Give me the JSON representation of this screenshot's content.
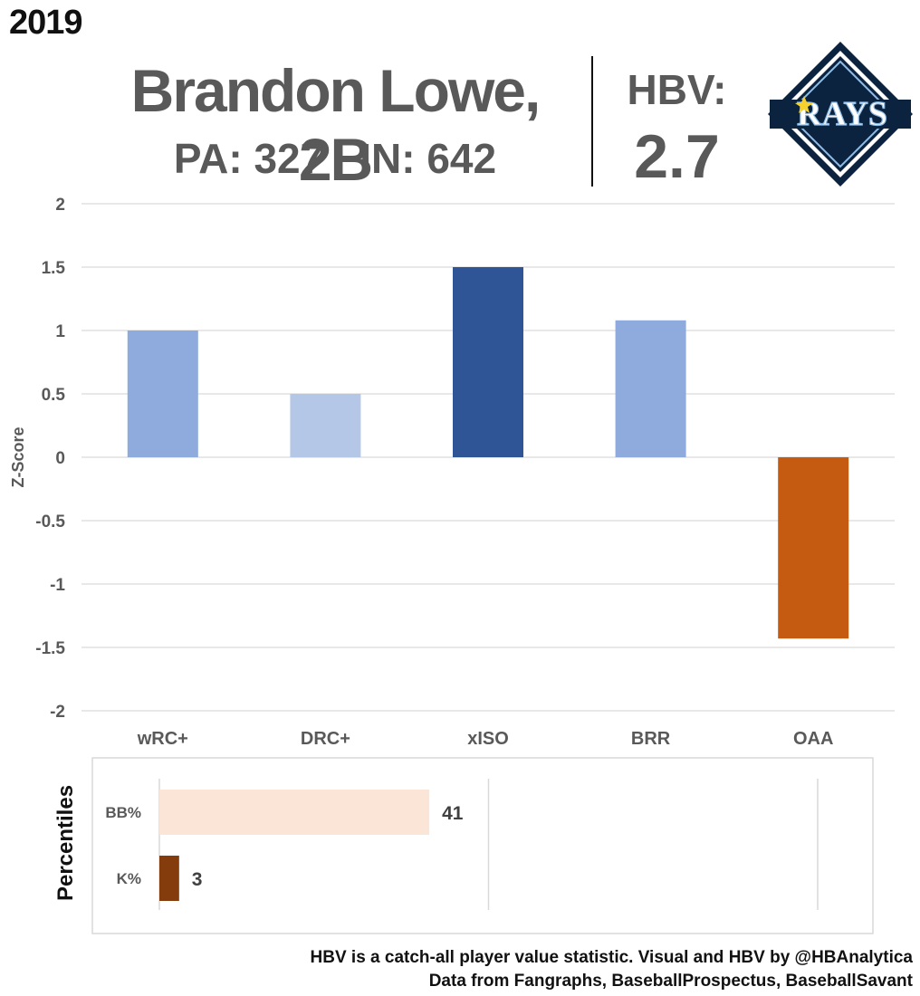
{
  "header": {
    "year": "2019",
    "player": "Brandon Lowe, 2B",
    "pa": "PA: 327",
    "inn": "IN: 642",
    "hbv_label": "HBV:",
    "hbv_value": "2.7"
  },
  "logo": {
    "text": "RAYS",
    "navy": "#0c2340",
    "gold": "#f5d130",
    "light_blue": "#8fbce6"
  },
  "chart_data": [
    {
      "type": "bar",
      "title": "",
      "xlabel": "",
      "ylabel": "Z-Score",
      "categories": [
        "wRC+",
        "DRC+",
        "xISO",
        "BRR",
        "OAA"
      ],
      "values": [
        1.0,
        0.5,
        1.5,
        1.08,
        -1.43
      ],
      "colors": [
        "#8faadc",
        "#b4c7e7",
        "#2f5597",
        "#8faadc",
        "#c55a11"
      ],
      "ylim": [
        -2,
        2
      ],
      "yticks": [
        2,
        1.5,
        1,
        0.5,
        0,
        -0.5,
        -1,
        -1.5,
        -2
      ],
      "grid": true,
      "legend": "none"
    },
    {
      "type": "bar",
      "orientation": "horizontal",
      "ylabel": "Percentiles",
      "categories": [
        "BB%",
        "K%"
      ],
      "values": [
        41,
        3
      ],
      "colors": [
        "#fbe5d6",
        "#843c0c"
      ],
      "xlim": [
        0,
        100
      ],
      "xgrid": [
        0,
        50,
        100
      ],
      "grid": true,
      "legend": "none"
    }
  ],
  "footer": {
    "line1": "HBV is a catch-all player value statistic. Visual and HBV by @HBAnalytica",
    "line2": "Data from Fangraphs, BaseballProspectus, BaseballSavant"
  }
}
